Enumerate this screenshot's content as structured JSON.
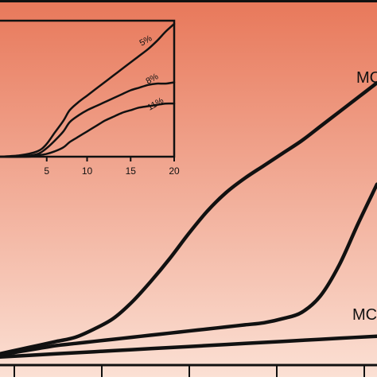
{
  "colors": {
    "background_top": "#e8785a",
    "background_bottom": "#fbe0d4",
    "line": "#111111"
  },
  "chart_data": [
    {
      "type": "line",
      "title": "",
      "xlabel": "",
      "ylabel": "",
      "grid": false,
      "series": [
        {
          "name": "MC",
          "x": [
            0,
            5,
            10,
            15,
            20,
            25,
            30,
            35,
            40,
            45,
            50,
            55,
            60,
            65,
            70,
            75,
            80,
            85,
            90,
            95,
            100
          ],
          "y": [
            2,
            4,
            6,
            8,
            10,
            14,
            19,
            27,
            37,
            48,
            60,
            71,
            80,
            87,
            93,
            99,
            105,
            112,
            119,
            126,
            133
          ]
        },
        {
          "name": "",
          "x": [
            0,
            5,
            10,
            15,
            20,
            25,
            30,
            35,
            40,
            45,
            50,
            55,
            60,
            65,
            70,
            75,
            80,
            85,
            90,
            95,
            100
          ],
          "y": [
            1.5,
            3,
            4.5,
            6,
            7,
            8,
            9,
            10,
            11,
            12,
            13,
            14,
            15,
            16,
            17,
            19,
            22,
            30,
            45,
            65,
            84
          ]
        },
        {
          "name": "MC",
          "x": [
            0,
            10,
            20,
            30,
            40,
            50,
            60,
            70,
            80,
            90,
            100
          ],
          "y": [
            0.5,
            1.5,
            2.5,
            3.5,
            4.5,
            5.5,
            6.5,
            7.5,
            8.5,
            9.5,
            10.5
          ]
        }
      ],
      "series_labels": [
        "MC",
        "MC"
      ]
    },
    {
      "type": "line",
      "title": "",
      "xlabel": "",
      "ylabel": "",
      "grid": false,
      "xlim": [
        0,
        20
      ],
      "ylim": [
        0,
        100
      ],
      "xticks": [
        "5",
        "10",
        "15",
        "20"
      ],
      "series": [
        {
          "name": "5%",
          "x": [
            0,
            2,
            4,
            5,
            6,
            7,
            8,
            9,
            10,
            11,
            12,
            13,
            14,
            15,
            16,
            17,
            18,
            19,
            20
          ],
          "y": [
            0,
            1,
            4,
            9,
            18,
            27,
            35,
            41,
            46,
            51,
            56,
            61,
            66,
            71,
            76,
            81,
            87,
            94,
            100
          ]
        },
        {
          "name": "8%",
          "x": [
            0,
            2,
            4,
            5,
            6,
            7,
            8,
            9,
            10,
            11,
            12,
            13,
            14,
            15,
            16,
            17,
            18,
            19,
            20
          ],
          "y": [
            0,
            0,
            2,
            6,
            12,
            19,
            26,
            31,
            35,
            38,
            41,
            44,
            47,
            50,
            52,
            54,
            55,
            55,
            56
          ]
        },
        {
          "name": "11%",
          "x": [
            0,
            3,
            4,
            5,
            6,
            7,
            8,
            9,
            10,
            11,
            12,
            13,
            14,
            15,
            16,
            17,
            18,
            19,
            20
          ],
          "y": [
            0,
            0,
            1,
            2,
            4,
            7,
            11,
            15,
            19,
            23,
            27,
            30,
            33,
            35,
            37,
            38,
            39,
            40,
            40
          ]
        }
      ]
    }
  ]
}
